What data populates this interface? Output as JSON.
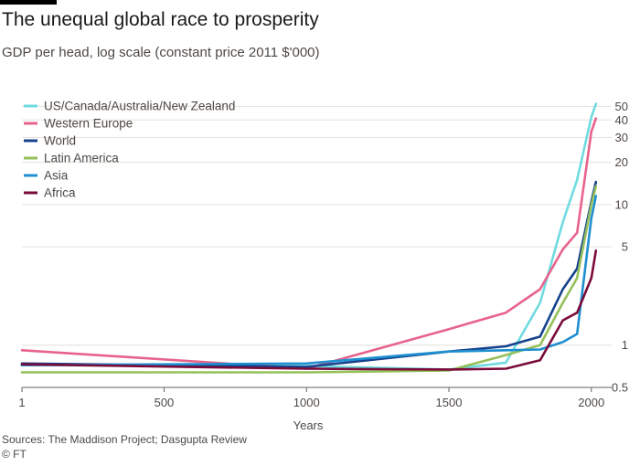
{
  "header": {
    "title": "The unequal global race to prosperity",
    "subtitle": "GDP per head, log scale (constant price 2011 $'000)"
  },
  "footer": {
    "source": "Sources: The Maddison Project; Dasgupta Review",
    "copyright": "© FT"
  },
  "chart_data": {
    "type": "line",
    "title": "The unequal global race to prosperity",
    "subtitle": "GDP per head, log scale (constant price 2011 $'000)",
    "xlabel": "Years",
    "ylabel": "",
    "xlim": [
      1,
      2020
    ],
    "ylim": [
      0.5,
      55
    ],
    "yscale": "log",
    "x_ticks": [
      1,
      500,
      1000,
      1500,
      2000
    ],
    "x_tick_labels": [
      "1",
      "500",
      "1000",
      "1500",
      "2000"
    ],
    "y_ticks": [
      0.5,
      1,
      5,
      10,
      20,
      30,
      40,
      50
    ],
    "y_tick_labels": [
      "0.5",
      "1",
      "5",
      "10",
      "20",
      "30",
      "40",
      "50"
    ],
    "y_axis_side": "right",
    "grid": "horizontal",
    "legend_position": "top-left",
    "series": [
      {
        "name": "US/Canada/Australia/New Zealand",
        "color": "#6fdbe0",
        "points": [
          [
            1,
            0.72
          ],
          [
            1000,
            0.71
          ],
          [
            1500,
            0.67
          ],
          [
            1700,
            0.75
          ],
          [
            1820,
            2.0
          ],
          [
            1900,
            7.5
          ],
          [
            1950,
            15
          ],
          [
            2000,
            42
          ],
          [
            2016,
            52
          ]
        ]
      },
      {
        "name": "Western Europe",
        "color": "#e8638c",
        "points": [
          [
            1,
            0.92
          ],
          [
            1000,
            0.68
          ],
          [
            1500,
            1.3
          ],
          [
            1700,
            1.7
          ],
          [
            1820,
            2.5
          ],
          [
            1900,
            4.8
          ],
          [
            1950,
            6.3
          ],
          [
            2000,
            33
          ],
          [
            2016,
            41
          ]
        ]
      },
      {
        "name": "World",
        "color": "#15428c",
        "points": [
          [
            1,
            0.74
          ],
          [
            1000,
            0.7
          ],
          [
            1500,
            0.9
          ],
          [
            1700,
            0.98
          ],
          [
            1820,
            1.15
          ],
          [
            1900,
            2.5
          ],
          [
            1950,
            3.5
          ],
          [
            2000,
            10.5
          ],
          [
            2016,
            14.5
          ]
        ]
      },
      {
        "name": "Latin America",
        "color": "#96c05a",
        "points": [
          [
            1,
            0.64
          ],
          [
            1000,
            0.64
          ],
          [
            1500,
            0.66
          ],
          [
            1700,
            0.85
          ],
          [
            1820,
            1.0
          ],
          [
            1900,
            2.0
          ],
          [
            1950,
            3.0
          ],
          [
            2000,
            10.0
          ],
          [
            2016,
            13.5
          ]
        ]
      },
      {
        "name": "Asia",
        "color": "#1e8fd0",
        "points": [
          [
            1,
            0.72
          ],
          [
            1000,
            0.74
          ],
          [
            1500,
            0.9
          ],
          [
            1700,
            0.92
          ],
          [
            1820,
            0.93
          ],
          [
            1900,
            1.05
          ],
          [
            1950,
            1.2
          ],
          [
            2000,
            8.0
          ],
          [
            2016,
            11.5
          ]
        ]
      },
      {
        "name": "Africa",
        "color": "#7a0b3a",
        "points": [
          [
            1,
            0.73
          ],
          [
            1000,
            0.68
          ],
          [
            1500,
            0.67
          ],
          [
            1700,
            0.68
          ],
          [
            1820,
            0.78
          ],
          [
            1900,
            1.5
          ],
          [
            1950,
            1.7
          ],
          [
            2000,
            3.0
          ],
          [
            2016,
            4.7
          ]
        ]
      }
    ]
  }
}
